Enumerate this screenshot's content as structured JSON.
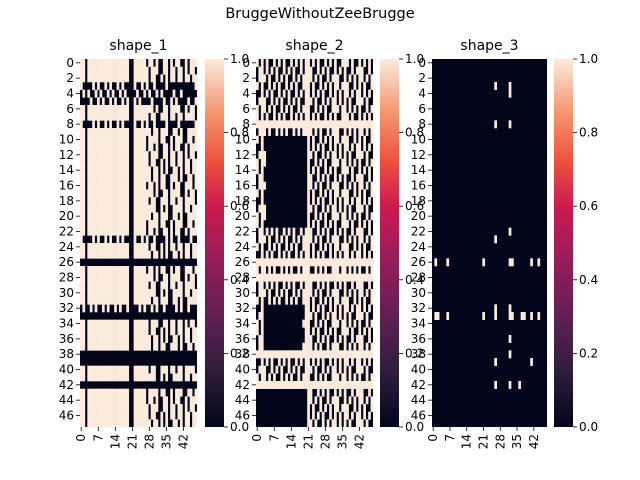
{
  "figure": {
    "suptitle": "BruggeWithoutZeeBrugge"
  },
  "chart_data": [
    {
      "type": "heatmap",
      "title": "shape_1",
      "rows": 48,
      "cols": 48,
      "ytick_labels": [
        "0",
        "2",
        "4",
        "6",
        "8",
        "10",
        "12",
        "14",
        "16",
        "18",
        "20",
        "22",
        "24",
        "26",
        "28",
        "30",
        "32",
        "34",
        "36",
        "38",
        "40",
        "42",
        "44",
        "46"
      ],
      "xtick_labels": [
        "0",
        "7",
        "14",
        "21",
        "28",
        "35",
        "42"
      ],
      "dark_cols": [
        2,
        20,
        21,
        32,
        36,
        42
      ],
      "dark_rows": [
        26,
        33,
        38,
        39,
        42
      ],
      "partial_dark_rows": [
        3,
        4,
        5,
        8,
        23,
        32
      ],
      "colorbar": {
        "ticks": [
          "0.0",
          "0.2",
          "0.4",
          "0.6",
          "0.8",
          "1.0"
        ],
        "vmin": 0.0,
        "vmax": 1.0
      }
    },
    {
      "type": "heatmap",
      "title": "shape_2",
      "rows": 48,
      "cols": 48,
      "ytick_labels": [
        "0",
        "2",
        "4",
        "6",
        "8",
        "10",
        "12",
        "14",
        "16",
        "18",
        "20",
        "22",
        "24",
        "26",
        "28",
        "30",
        "32",
        "34",
        "36",
        "38",
        "40",
        "42",
        "44",
        "46"
      ],
      "xtick_labels": [
        "0",
        "7",
        "14",
        "21",
        "28",
        "35",
        "42"
      ],
      "light_cols": [
        2,
        20,
        21,
        32,
        36,
        42
      ],
      "light_rows": [
        8,
        26,
        28,
        38,
        42
      ],
      "dark_blocks": [
        [
          10,
          21,
          4,
          20
        ],
        [
          32,
          37,
          3,
          18
        ],
        [
          43,
          47,
          0,
          20
        ]
      ],
      "colorbar": {
        "ticks": [
          "0.0",
          "0.2",
          "0.4",
          "0.6",
          "0.8",
          "1.0"
        ],
        "vmin": 0.0,
        "vmax": 1.0
      }
    },
    {
      "type": "heatmap",
      "title": "shape_3",
      "rows": 48,
      "cols": 48,
      "ytick_labels": [
        "0",
        "2",
        "4",
        "6",
        "8",
        "10",
        "12",
        "14",
        "16",
        "18",
        "20",
        "22",
        "24",
        "26",
        "28",
        "30",
        "32",
        "34",
        "36",
        "38",
        "40",
        "42",
        "44",
        "46"
      ],
      "xtick_labels": [
        "0",
        "7",
        "14",
        "21",
        "28",
        "35",
        "42"
      ],
      "light_cells": [
        [
          3,
          26
        ],
        [
          3,
          32
        ],
        [
          4,
          32
        ],
        [
          8,
          26
        ],
        [
          8,
          32
        ],
        [
          23,
          26
        ],
        [
          22,
          32
        ],
        [
          26,
          1
        ],
        [
          26,
          6
        ],
        [
          26,
          21
        ],
        [
          26,
          32
        ],
        [
          26,
          33
        ],
        [
          26,
          41
        ],
        [
          26,
          44
        ],
        [
          32,
          26
        ],
        [
          32,
          32
        ],
        [
          33,
          1
        ],
        [
          33,
          2
        ],
        [
          33,
          6
        ],
        [
          33,
          21
        ],
        [
          33,
          26
        ],
        [
          33,
          32
        ],
        [
          33,
          33
        ],
        [
          33,
          37
        ],
        [
          33,
          38
        ],
        [
          33,
          41
        ],
        [
          33,
          44
        ],
        [
          36,
          32
        ],
        [
          38,
          32
        ],
        [
          39,
          26
        ],
        [
          39,
          41
        ],
        [
          42,
          26
        ],
        [
          42,
          32
        ],
        [
          42,
          36
        ]
      ],
      "colorbar": {
        "ticks": [
          "0.0",
          "0.2",
          "0.4",
          "0.6",
          "0.8",
          "1.0"
        ],
        "vmin": 0.0,
        "vmax": 1.0
      }
    }
  ]
}
